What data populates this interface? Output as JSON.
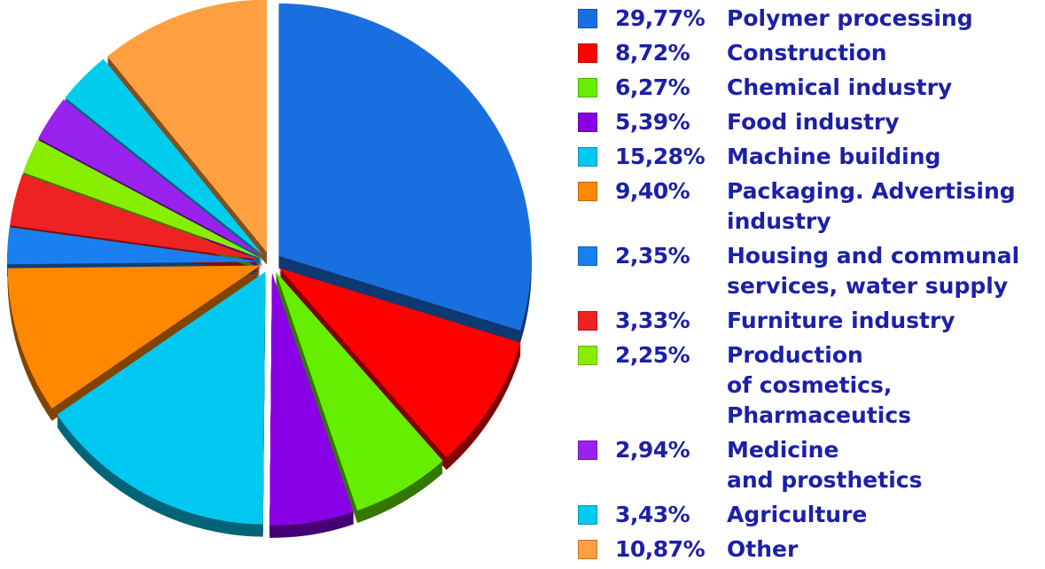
{
  "chart_data": {
    "type": "pie",
    "categories": [
      "Polymer processing",
      "Construction",
      "Chemical industry",
      "Food industry",
      "Machine building",
      "Packaging. Advertising\nindustry",
      "Housing and communal\nservices, water supply",
      "Furniture industry",
      "Production\nof cosmetics,\nPharmaceutics",
      "Medicine\nand prosthetics",
      "Agriculture",
      "Other"
    ],
    "values": [
      29.77,
      8.72,
      6.27,
      5.39,
      15.28,
      9.4,
      2.35,
      3.33,
      2.25,
      2.94,
      3.43,
      10.87
    ],
    "value_labels": [
      "29,77%",
      "8,72%",
      "6,27%",
      "5,39%",
      "15,28%",
      "9,40%",
      "2,35%",
      "3,33%",
      "2,25%",
      "2,94%",
      "3,43%",
      "10,87%"
    ],
    "colors": [
      "#1a6fe0",
      "#ff0000",
      "#66ee00",
      "#8a00e6",
      "#00c8f0",
      "#ff8800",
      "#1a80f0",
      "#ee2222",
      "#88ee00",
      "#9922ee",
      "#00ccee",
      "#ffa040"
    ]
  }
}
